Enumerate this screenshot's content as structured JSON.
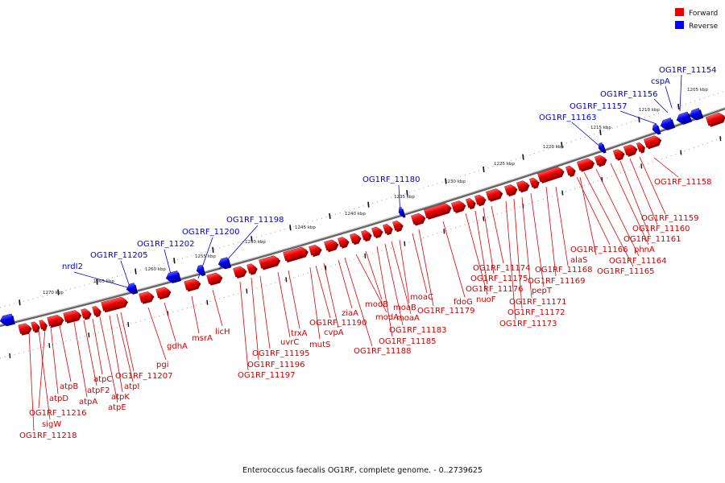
{
  "legend": {
    "forward": {
      "label": "Forward",
      "color": "#ee0000"
    },
    "reverse": {
      "label": "Reverse",
      "color": "#0000ee"
    }
  },
  "caption": "Enterococcus faecalis OG1RF, complete genome. - 0..2739625",
  "ticks": [
    "1205 kbp",
    "1210 kbp",
    "1215 kbp",
    "1220 kbp",
    "1225 kbp",
    "1230 kbp",
    "1235 kbp",
    "1240 kbp",
    "1245 kbp",
    "1250 kbp",
    "1255 kbp",
    "1260 kbp",
    "1265 kbp",
    "1270 kbp"
  ],
  "reverse_labels": [
    "OG1RF_11154",
    "cspA",
    "OG1RF_11156",
    "OG1RF_11157",
    "OG1RF_11163",
    "OG1RF_11180",
    "OG1RF_11198",
    "OG1RF_11200",
    "OG1RF_11202",
    "OG1RF_11205",
    "nrdI2"
  ],
  "forward_labels": [
    "OG1RF_11158",
    "OG1RF_11159",
    "OG1RF_11160",
    "OG1RF_11161",
    "phnA",
    "OG1RF_11164",
    "OG1RF_11165",
    "OG1RF_11166",
    "alaS",
    "OG1RF_11168",
    "OG1RF_11169",
    "pepT",
    "OG1RF_11171",
    "OG1RF_11172",
    "OG1RF_11173",
    "OG1RF_11174",
    "OG1RF_11175",
    "OG1RF_11176",
    "nuoF",
    "fdoG",
    "OG1RF_11179",
    "moaC",
    "moaB",
    "moaA",
    "OG1RF_11183",
    "OG1RF_11185",
    "modB",
    "modA",
    "OG1RF_11188",
    "ziaA",
    "cvpA",
    "OG1RF_11190",
    "mutS",
    "trxA",
    "uvrC",
    "OG1RF_11195",
    "OG1RF_11196",
    "OG1RF_11197",
    "licH",
    "msrA",
    "gdhA",
    "pgi",
    "OG1RF_11207",
    "atpI",
    "atpK",
    "atpE",
    "atpC",
    "atpF2",
    "atpA",
    "atpB",
    "atpD",
    "OG1RF_11216",
    "sigW",
    "OG1RF_11218"
  ]
}
